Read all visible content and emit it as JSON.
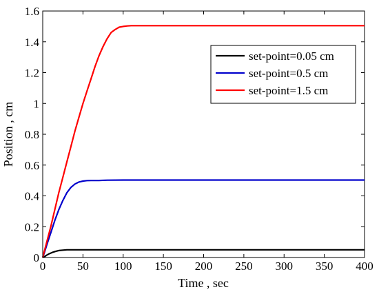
{
  "chart_data": {
    "type": "line",
    "xlabel": "Time ,  sec",
    "ylabel": "Position , cm",
    "xlim": [
      0,
      400
    ],
    "ylim": [
      0,
      1.6
    ],
    "xticks": [
      0,
      50,
      100,
      150,
      200,
      250,
      300,
      350,
      400
    ],
    "yticks": [
      0,
      0.2,
      0.4,
      0.6,
      0.8,
      1,
      1.2,
      1.4,
      1.6
    ],
    "xtick_labels": [
      "0",
      "50",
      "100",
      "150",
      "200",
      "250",
      "300",
      "350",
      "400"
    ],
    "ytick_labels": [
      "0",
      "0.2",
      "0.4",
      "0.6",
      "0.8",
      "1",
      "1.2",
      "1.4",
      "1.6"
    ],
    "grid": false,
    "legend_position": "top-right",
    "series": [
      {
        "name": "set-point=0.05 cm",
        "color": "#000000",
        "x": [
          0,
          2,
          5,
          8,
          12,
          16,
          20,
          25,
          30,
          35,
          40,
          50,
          60,
          80,
          100,
          150,
          200,
          250,
          300,
          350,
          400
        ],
        "y": [
          0,
          0.005,
          0.015,
          0.024,
          0.033,
          0.04,
          0.045,
          0.048,
          0.05,
          0.05,
          0.05,
          0.05,
          0.05,
          0.05,
          0.05,
          0.05,
          0.05,
          0.05,
          0.05,
          0.05,
          0.05
        ]
      },
      {
        "name": "set-point=0.5 cm",
        "color": "#0000cc",
        "x": [
          0,
          2,
          5,
          10,
          15,
          20,
          25,
          30,
          35,
          40,
          45,
          50,
          55,
          60,
          70,
          80,
          100,
          150,
          200,
          250,
          300,
          350,
          400
        ],
        "y": [
          0,
          0.03,
          0.08,
          0.16,
          0.24,
          0.31,
          0.37,
          0.42,
          0.455,
          0.477,
          0.49,
          0.496,
          0.499,
          0.5,
          0.5,
          0.502,
          0.503,
          0.503,
          0.503,
          0.503,
          0.503,
          0.503,
          0.503
        ]
      },
      {
        "name": "set-point=1.5 cm",
        "color": "#ff0000",
        "x": [
          0,
          2,
          5,
          10,
          15,
          20,
          25,
          30,
          35,
          40,
          45,
          50,
          55,
          60,
          65,
          70,
          75,
          80,
          85,
          90,
          95,
          100,
          105,
          110,
          120,
          150,
          200,
          250,
          300,
          350,
          400
        ],
        "y": [
          0,
          0.04,
          0.1,
          0.2,
          0.31,
          0.42,
          0.52,
          0.62,
          0.72,
          0.82,
          0.91,
          1.0,
          1.08,
          1.16,
          1.24,
          1.31,
          1.37,
          1.42,
          1.46,
          1.48,
          1.495,
          1.5,
          1.503,
          1.505,
          1.505,
          1.505,
          1.505,
          1.505,
          1.505,
          1.505,
          1.505
        ]
      }
    ]
  }
}
